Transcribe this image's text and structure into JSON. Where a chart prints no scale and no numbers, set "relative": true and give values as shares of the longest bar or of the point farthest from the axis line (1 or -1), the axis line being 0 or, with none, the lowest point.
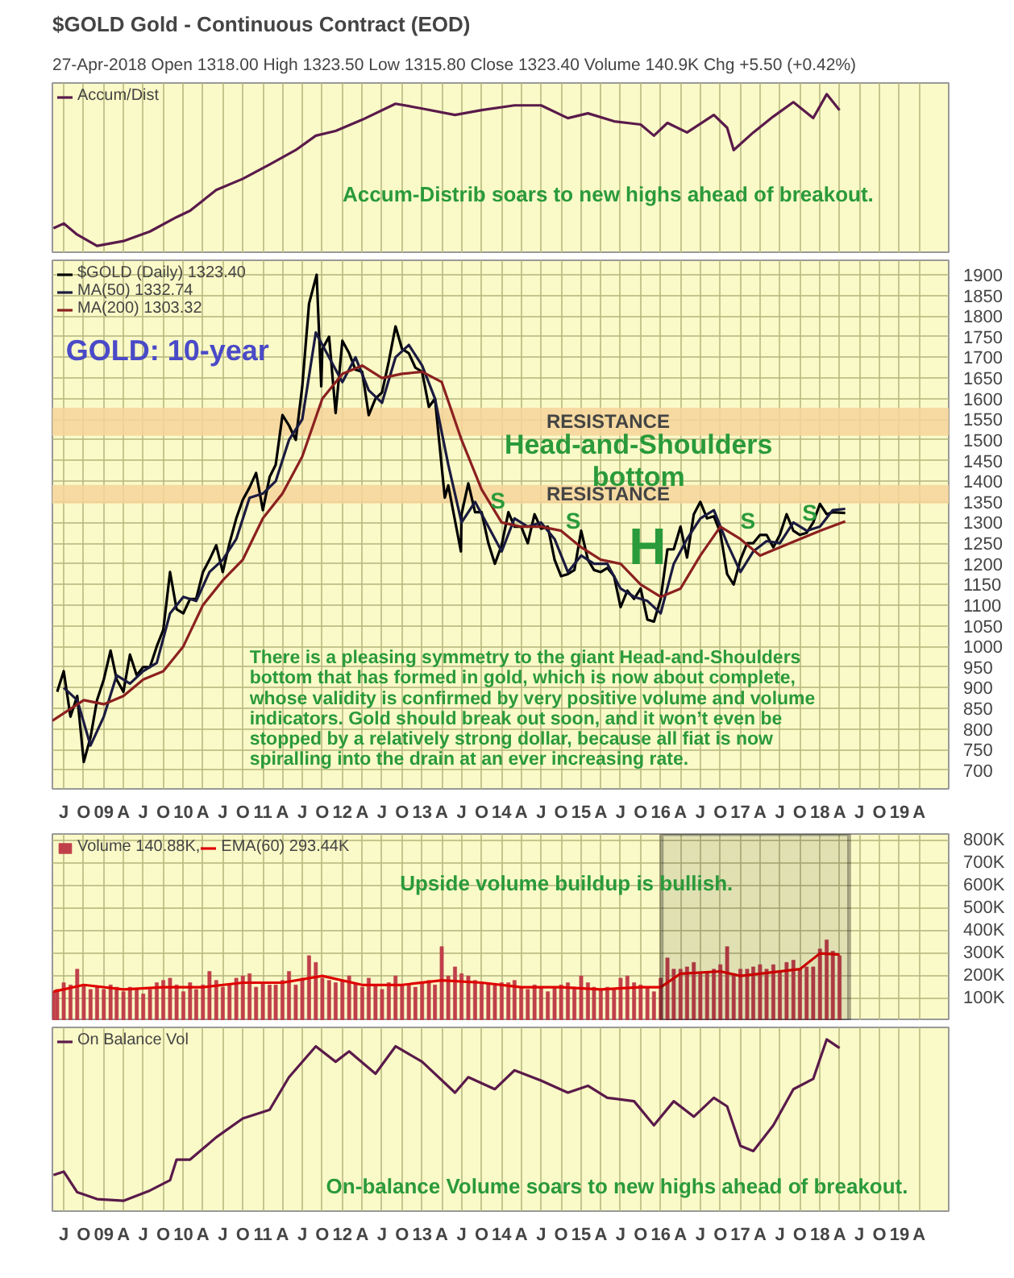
{
  "chart_data": [
    {
      "type": "line",
      "title": "$GOLD Gold - Continuous Contract (EOD)",
      "subtitle": "27-Apr-2018  Open 1318.00  High 1323.50  Low 1315.80  Close 1323.40  Volume 140.9K  Chg +5.50 (+0.42%)",
      "relative": true,
      "legend": "top left",
      "grid": "x",
      "tick_labels": false,
      "xlim": [
        "2008-05-10",
        "2019-08-15"
      ],
      "xticks": [
        {
          "value": "2008-07",
          "label": "J"
        },
        {
          "value": "2008-10",
          "label": "O"
        },
        {
          "value": "2009-01",
          "label": "09"
        },
        {
          "value": "2009-04",
          "label": "A"
        },
        {
          "value": "2009-07",
          "label": "J"
        },
        {
          "value": "2009-10",
          "label": "O"
        },
        {
          "value": "2010-01",
          "label": "10"
        },
        {
          "value": "2010-04",
          "label": "A"
        },
        {
          "value": "2010-07",
          "label": "J"
        },
        {
          "value": "2010-10",
          "label": "O"
        },
        {
          "value": "2011-01",
          "label": "11"
        },
        {
          "value": "2011-04",
          "label": "A"
        },
        {
          "value": "2011-07",
          "label": "J"
        },
        {
          "value": "2011-10",
          "label": "O"
        },
        {
          "value": "2012-01",
          "label": "12"
        },
        {
          "value": "2012-04",
          "label": "A"
        },
        {
          "value": "2012-07",
          "label": "J"
        },
        {
          "value": "2012-10",
          "label": "O"
        },
        {
          "value": "2013-01",
          "label": "13"
        },
        {
          "value": "2013-04",
          "label": "A"
        },
        {
          "value": "2013-07",
          "label": "J"
        },
        {
          "value": "2013-10",
          "label": "O"
        },
        {
          "value": "2014-01",
          "label": "14"
        },
        {
          "value": "2014-04",
          "label": "A"
        },
        {
          "value": "2014-07",
          "label": "J"
        },
        {
          "value": "2014-10",
          "label": "O"
        },
        {
          "value": "2015-01",
          "label": "15"
        },
        {
          "value": "2015-04",
          "label": "A"
        },
        {
          "value": "2015-07",
          "label": "J"
        },
        {
          "value": "2015-10",
          "label": "O"
        },
        {
          "value": "2016-01",
          "label": "16"
        },
        {
          "value": "2016-04",
          "label": "A"
        },
        {
          "value": "2016-07",
          "label": "J"
        },
        {
          "value": "2016-10",
          "label": "O"
        },
        {
          "value": "2017-01",
          "label": "17"
        },
        {
          "value": "2017-04",
          "label": "A"
        },
        {
          "value": "2017-07",
          "label": "J"
        },
        {
          "value": "2017-10",
          "label": "O"
        },
        {
          "value": "2018-01",
          "label": "18"
        },
        {
          "value": "2018-04",
          "label": "A"
        },
        {
          "value": "2018-07",
          "label": "J"
        },
        {
          "value": "2018-10",
          "label": "O"
        },
        {
          "value": "2019-01",
          "label": "19"
        },
        {
          "value": "2019-04",
          "label": "A"
        }
      ],
      "series": [
        {
          "name": "Accum/Dist",
          "color": "#5a1a4a",
          "x": [
            "2008-05-15",
            "2008-07",
            "2008-09",
            "2008-12",
            "2009-04",
            "2009-08",
            "2009-12",
            "2010-02",
            "2010-06",
            "2010-10",
            "2011-02",
            "2011-06",
            "2011-09",
            "2011-12",
            "2012-04",
            "2012-09",
            "2013-01",
            "2013-06",
            "2013-10",
            "2014-03",
            "2014-07",
            "2014-11",
            "2015-02",
            "2015-06",
            "2015-10",
            "2015-12",
            "2016-02",
            "2016-05",
            "2016-09",
            "2016-11",
            "2016-12",
            "2017-03",
            "2017-06",
            "2017-09",
            "2017-12",
            "2018-02",
            "2018-04"
          ],
          "values": [
            0.16,
            0.19,
            0.12,
            0.05,
            0.08,
            0.14,
            0.23,
            0.27,
            0.4,
            0.47,
            0.56,
            0.65,
            0.74,
            0.77,
            0.84,
            0.94,
            0.91,
            0.87,
            0.9,
            0.93,
            0.93,
            0.85,
            0.88,
            0.83,
            0.81,
            0.74,
            0.82,
            0.76,
            0.87,
            0.79,
            0.65,
            0.76,
            0.86,
            0.95,
            0.85,
            1,
            0.9
          ]
        }
      ],
      "annotations": [
        "Accum-Distrib soars to new highs ahead of breakout."
      ]
    },
    {
      "type": "line",
      "legend": "top left",
      "grid": true,
      "xlim": [
        "2008-05-10",
        "2019-08-15"
      ],
      "ylim": [
        655,
        1935
      ],
      "yticks": [
        700,
        750,
        800,
        850,
        900,
        950,
        1000,
        1050,
        1100,
        1150,
        1200,
        1250,
        1300,
        1350,
        1400,
        1450,
        1500,
        1550,
        1600,
        1650,
        1700,
        1750,
        1800,
        1850,
        1900
      ],
      "xticks": [
        {
          "value": "2008-07",
          "label": "J"
        },
        {
          "value": "2008-10",
          "label": "O"
        },
        {
          "value": "2009-01",
          "label": "09"
        },
        {
          "value": "2009-04",
          "label": "A"
        },
        {
          "value": "2009-07",
          "label": "J"
        },
        {
          "value": "2009-10",
          "label": "O"
        },
        {
          "value": "2010-01",
          "label": "10"
        },
        {
          "value": "2010-04",
          "label": "A"
        },
        {
          "value": "2010-07",
          "label": "J"
        },
        {
          "value": "2010-10",
          "label": "O"
        },
        {
          "value": "2011-01",
          "label": "11"
        },
        {
          "value": "2011-04",
          "label": "A"
        },
        {
          "value": "2011-07",
          "label": "J"
        },
        {
          "value": "2011-10",
          "label": "O"
        },
        {
          "value": "2012-01",
          "label": "12"
        },
        {
          "value": "2012-04",
          "label": "A"
        },
        {
          "value": "2012-07",
          "label": "J"
        },
        {
          "value": "2012-10",
          "label": "O"
        },
        {
          "value": "2013-01",
          "label": "13"
        },
        {
          "value": "2013-04",
          "label": "A"
        },
        {
          "value": "2013-07",
          "label": "J"
        },
        {
          "value": "2013-10",
          "label": "O"
        },
        {
          "value": "2014-01",
          "label": "14"
        },
        {
          "value": "2014-04",
          "label": "A"
        },
        {
          "value": "2014-07",
          "label": "J"
        },
        {
          "value": "2014-10",
          "label": "O"
        },
        {
          "value": "2015-01",
          "label": "15"
        },
        {
          "value": "2015-04",
          "label": "A"
        },
        {
          "value": "2015-07",
          "label": "J"
        },
        {
          "value": "2015-10",
          "label": "O"
        },
        {
          "value": "2016-01",
          "label": "16"
        },
        {
          "value": "2016-04",
          "label": "A"
        },
        {
          "value": "2016-07",
          "label": "J"
        },
        {
          "value": "2016-10",
          "label": "O"
        },
        {
          "value": "2017-01",
          "label": "17"
        },
        {
          "value": "2017-04",
          "label": "A"
        },
        {
          "value": "2017-07",
          "label": "J"
        },
        {
          "value": "2017-10",
          "label": "O"
        },
        {
          "value": "2018-01",
          "label": "18"
        },
        {
          "value": "2018-04",
          "label": "A"
        },
        {
          "value": "2018-07",
          "label": "J"
        },
        {
          "value": "2018-10",
          "label": "O"
        },
        {
          "value": "2019-01",
          "label": "19"
        },
        {
          "value": "2019-04",
          "label": "A"
        }
      ],
      "series": [
        {
          "name": "$GOLD (Daily) 1323.40",
          "color": "#000000",
          "x": [
            "2008-06",
            "2008-07",
            "2008-08",
            "2008-09",
            "2008-10",
            "2008-11",
            "2008-12",
            "2009-01",
            "2009-02",
            "2009-03",
            "2009-04",
            "2009-05",
            "2009-06",
            "2009-07",
            "2009-08",
            "2009-09",
            "2009-10",
            "2009-11",
            "2009-12",
            "2010-01",
            "2010-02",
            "2010-03",
            "2010-04",
            "2010-05",
            "2010-06",
            "2010-07",
            "2010-08",
            "2010-09",
            "2010-10",
            "2010-11",
            "2010-12",
            "2011-01",
            "2011-02",
            "2011-03",
            "2011-04",
            "2011-05",
            "2011-06",
            "2011-07",
            "2011-08",
            "2011-09-05",
            "2011-09-26",
            "2011-10",
            "2011-11",
            "2011-12",
            "2012-01",
            "2012-02",
            "2012-03",
            "2012-04",
            "2012-05",
            "2012-06",
            "2012-07",
            "2012-08",
            "2012-09",
            "2012-10",
            "2012-11",
            "2012-12",
            "2013-01",
            "2013-02",
            "2013-03",
            "2013-04-15",
            "2013-05",
            "2013-06-28",
            "2013-07",
            "2013-08",
            "2013-09",
            "2013-10",
            "2013-11",
            "2013-12",
            "2014-01",
            "2014-02",
            "2014-03",
            "2014-04",
            "2014-05",
            "2014-06",
            "2014-07",
            "2014-08",
            "2014-09",
            "2014-10",
            "2014-11",
            "2014-12",
            "2015-01",
            "2015-02",
            "2015-03",
            "2015-04",
            "2015-05",
            "2015-06",
            "2015-07",
            "2015-08",
            "2015-09",
            "2015-10",
            "2015-11",
            "2015-12",
            "2016-01",
            "2016-02",
            "2016-03",
            "2016-04",
            "2016-05",
            "2016-06",
            "2016-07",
            "2016-08",
            "2016-09",
            "2016-10",
            "2016-11",
            "2016-12",
            "2017-01",
            "2017-02",
            "2017-03",
            "2017-04",
            "2017-05",
            "2017-06",
            "2017-07",
            "2017-08",
            "2017-09",
            "2017-10",
            "2017-11",
            "2017-12",
            "2018-01",
            "2018-02",
            "2018-03",
            "2018-04-27"
          ],
          "values": [
            890,
            940,
            830,
            880,
            720,
            780,
            870,
            920,
            990,
            920,
            890,
            980,
            930,
            950,
            950,
            1000,
            1040,
            1180,
            1090,
            1080,
            1115,
            1115,
            1180,
            1210,
            1245,
            1180,
            1250,
            1310,
            1355,
            1385,
            1420,
            1330,
            1410,
            1440,
            1560,
            1535,
            1500,
            1630,
            1830,
            1900,
            1630,
            1720,
            1750,
            1565,
            1740,
            1710,
            1670,
            1665,
            1560,
            1600,
            1615,
            1690,
            1775,
            1720,
            1710,
            1675,
            1665,
            1580,
            1600,
            1360,
            1390,
            1230,
            1320,
            1395,
            1325,
            1325,
            1250,
            1200,
            1245,
            1325,
            1290,
            1290,
            1250,
            1320,
            1285,
            1290,
            1210,
            1170,
            1175,
            1185,
            1280,
            1210,
            1185,
            1180,
            1190,
            1170,
            1095,
            1135,
            1115,
            1140,
            1065,
            1060,
            1115,
            1235,
            1235,
            1290,
            1215,
            1320,
            1350,
            1310,
            1315,
            1275,
            1175,
            1150,
            1210,
            1250,
            1250,
            1270,
            1270,
            1240,
            1270,
            1320,
            1280,
            1270,
            1275,
            1300,
            1345,
            1320,
            1325,
            1323
          ]
        },
        {
          "name": "MA(50) 1332.74",
          "color": "#1a1a40",
          "x": [
            "2008-07",
            "2008-09",
            "2008-11",
            "2009-01",
            "2009-03",
            "2009-05",
            "2009-07",
            "2009-09",
            "2009-11",
            "2010-01",
            "2010-03",
            "2010-05",
            "2010-07",
            "2010-09",
            "2010-11",
            "2011-01",
            "2011-03",
            "2011-05",
            "2011-07",
            "2011-09",
            "2011-11",
            "2012-01",
            "2012-03",
            "2012-05",
            "2012-07",
            "2012-09",
            "2012-11",
            "2013-01",
            "2013-03",
            "2013-05",
            "2013-07",
            "2013-09",
            "2013-11",
            "2014-01",
            "2014-03",
            "2014-05",
            "2014-07",
            "2014-09",
            "2014-11",
            "2015-01",
            "2015-03",
            "2015-05",
            "2015-07",
            "2015-09",
            "2015-11",
            "2016-01",
            "2016-03",
            "2016-05",
            "2016-07",
            "2016-09",
            "2016-11",
            "2017-01",
            "2017-03",
            "2017-05",
            "2017-07",
            "2017-09",
            "2017-11",
            "2018-01",
            "2018-03",
            "2018-04-27"
          ],
          "values": [
            900,
            870,
            760,
            830,
            930,
            910,
            940,
            960,
            1080,
            1120,
            1110,
            1180,
            1210,
            1260,
            1360,
            1370,
            1400,
            1500,
            1550,
            1760,
            1700,
            1640,
            1700,
            1620,
            1590,
            1700,
            1730,
            1680,
            1600,
            1440,
            1300,
            1350,
            1290,
            1230,
            1310,
            1290,
            1300,
            1260,
            1180,
            1220,
            1200,
            1200,
            1140,
            1120,
            1110,
            1080,
            1200,
            1260,
            1310,
            1330,
            1250,
            1180,
            1230,
            1255,
            1250,
            1300,
            1280,
            1290,
            1330,
            1333
          ]
        },
        {
          "name": "MA(200) 1303.32",
          "color": "#8b2020",
          "x": [
            "2008-05-10",
            "2008-10",
            "2009-01",
            "2009-04",
            "2009-07",
            "2009-10",
            "2010-01",
            "2010-04",
            "2010-07",
            "2010-10",
            "2011-01",
            "2011-04",
            "2011-07",
            "2011-10",
            "2012-01",
            "2012-04",
            "2012-07",
            "2012-10",
            "2013-01",
            "2013-04",
            "2013-07",
            "2013-10",
            "2014-01",
            "2014-04",
            "2014-07",
            "2014-10",
            "2015-01",
            "2015-04",
            "2015-07",
            "2015-10",
            "2016-01",
            "2016-04",
            "2016-07",
            "2016-10",
            "2017-01",
            "2017-04",
            "2017-07",
            "2017-10",
            "2018-01",
            "2018-04-27"
          ],
          "values": [
            820,
            870,
            860,
            880,
            920,
            940,
            1000,
            1100,
            1160,
            1210,
            1310,
            1370,
            1460,
            1600,
            1660,
            1680,
            1650,
            1660,
            1665,
            1640,
            1500,
            1380,
            1300,
            1290,
            1290,
            1280,
            1240,
            1210,
            1200,
            1150,
            1120,
            1140,
            1220,
            1290,
            1260,
            1220,
            1240,
            1260,
            1280,
            1303
          ]
        }
      ],
      "bands": [
        {
          "axis": "y",
          "from": 1510,
          "to": 1578,
          "label": "RESISTANCE",
          "color": "#f5d49a"
        },
        {
          "axis": "y",
          "from": 1346,
          "to": 1391,
          "label": "RESISTANCE",
          "color": "#f5d49a"
        }
      ],
      "annotations": [
        "GOLD: 10-year",
        "Head-and-Shoulders bottom",
        "S",
        "S",
        "H",
        "S",
        "S",
        "There is a pleasing symmetry to the giant Head-and-Shoulders bottom that has formed in gold, which is now about complete, whose validity is confirmed by very positive volume and volume indicators. Gold should break out soon, and it won’t even be stopped by a relatively strong dollar, because all fiat is now spiralling into the drain at an ever increasing rate."
      ]
    },
    {
      "type": "bar",
      "legend": "top left",
      "grid": true,
      "tick_labels": "y",
      "xlim": [
        "2008-05-10",
        "2019-08-15"
      ],
      "ylim": [
        0,
        830000
      ],
      "yticks": [
        {
          "value": 100000,
          "label": "100K"
        },
        {
          "value": 200000,
          "label": "200K"
        },
        {
          "value": 300000,
          "label": "300K"
        },
        {
          "value": 400000,
          "label": "400K"
        },
        {
          "value": 500000,
          "label": "500K"
        },
        {
          "value": 600000,
          "label": "600K"
        },
        {
          "value": 700000,
          "label": "700K"
        },
        {
          "value": 800000,
          "label": "800K"
        }
      ],
      "xticks": [
        {
          "value": "2008-07",
          "label": "J"
        },
        {
          "value": "2008-10",
          "label": "O"
        },
        {
          "value": "2009-01",
          "label": "09"
        },
        {
          "value": "2009-04",
          "label": "A"
        },
        {
          "value": "2009-07",
          "label": "J"
        },
        {
          "value": "2009-10",
          "label": "O"
        },
        {
          "value": "2010-01",
          "label": "10"
        },
        {
          "value": "2010-04",
          "label": "A"
        },
        {
          "value": "2010-07",
          "label": "J"
        },
        {
          "value": "2010-10",
          "label": "O"
        },
        {
          "value": "2011-01",
          "label": "11"
        },
        {
          "value": "2011-04",
          "label": "A"
        },
        {
          "value": "2011-07",
          "label": "J"
        },
        {
          "value": "2011-10",
          "label": "O"
        },
        {
          "value": "2012-01",
          "label": "12"
        },
        {
          "value": "2012-04",
          "label": "A"
        },
        {
          "value": "2012-07",
          "label": "J"
        },
        {
          "value": "2012-10",
          "label": "O"
        },
        {
          "value": "2013-01",
          "label": "13"
        },
        {
          "value": "2013-04",
          "label": "A"
        },
        {
          "value": "2013-07",
          "label": "J"
        },
        {
          "value": "2013-10",
          "label": "O"
        },
        {
          "value": "2014-01",
          "label": "14"
        },
        {
          "value": "2014-04",
          "label": "A"
        },
        {
          "value": "2014-07",
          "label": "J"
        },
        {
          "value": "2014-10",
          "label": "O"
        },
        {
          "value": "2015-01",
          "label": "15"
        },
        {
          "value": "2015-04",
          "label": "A"
        },
        {
          "value": "2015-07",
          "label": "J"
        },
        {
          "value": "2015-10",
          "label": "O"
        },
        {
          "value": "2016-01",
          "label": "16"
        },
        {
          "value": "2016-04",
          "label": "A"
        },
        {
          "value": "2016-07",
          "label": "J"
        },
        {
          "value": "2016-10",
          "label": "O"
        },
        {
          "value": "2017-01",
          "label": "17"
        },
        {
          "value": "2017-04",
          "label": "A"
        },
        {
          "value": "2017-07",
          "label": "J"
        },
        {
          "value": "2017-10",
          "label": "O"
        },
        {
          "value": "2018-01",
          "label": "18"
        },
        {
          "value": "2018-04",
          "label": "A"
        },
        {
          "value": "2018-07",
          "label": "J"
        },
        {
          "value": "2018-10",
          "label": "O"
        },
        {
          "value": "2019-01",
          "label": "19"
        },
        {
          "value": "2019-04",
          "label": "A"
        }
      ],
      "series": [
        {
          "name": "Volume 140.88K,",
          "color": "#c0404a",
          "x": [
            "2008-05-15",
            "2008-06",
            "2008-07",
            "2008-08",
            "2008-09",
            "2008-10",
            "2008-11",
            "2008-12",
            "2009-01",
            "2009-02",
            "2009-03",
            "2009-04",
            "2009-05",
            "2009-06",
            "2009-07",
            "2009-08",
            "2009-09",
            "2009-10",
            "2009-11",
            "2009-12",
            "2010-01",
            "2010-02",
            "2010-03",
            "2010-04",
            "2010-05",
            "2010-06",
            "2010-07",
            "2010-08",
            "2010-09",
            "2010-10",
            "2010-11",
            "2010-12",
            "2011-01",
            "2011-02",
            "2011-03",
            "2011-04",
            "2011-05",
            "2011-06",
            "2011-07",
            "2011-08",
            "2011-09",
            "2011-10",
            "2011-11",
            "2011-12",
            "2012-01",
            "2012-02",
            "2012-03",
            "2012-04",
            "2012-05",
            "2012-06",
            "2012-07",
            "2012-08",
            "2012-09",
            "2012-10",
            "2012-11",
            "2012-12",
            "2013-01",
            "2013-02",
            "2013-03",
            "2013-04",
            "2013-05",
            "2013-06",
            "2013-07",
            "2013-08",
            "2013-09",
            "2013-10",
            "2013-11",
            "2013-12",
            "2014-01",
            "2014-02",
            "2014-03",
            "2014-04",
            "2014-05",
            "2014-06",
            "2014-07",
            "2014-08",
            "2014-09",
            "2014-10",
            "2014-11",
            "2014-12",
            "2015-01",
            "2015-02",
            "2015-03",
            "2015-04",
            "2015-05",
            "2015-06",
            "2015-07",
            "2015-08",
            "2015-09",
            "2015-10",
            "2015-11",
            "2015-12",
            "2016-01",
            "2016-02",
            "2016-03",
            "2016-04",
            "2016-05",
            "2016-06",
            "2016-07",
            "2016-08",
            "2016-09",
            "2016-10",
            "2016-11",
            "2016-12",
            "2017-01",
            "2017-02",
            "2017-03",
            "2017-04",
            "2017-05",
            "2017-06",
            "2017-07",
            "2017-08",
            "2017-09",
            "2017-10",
            "2017-11",
            "2017-12",
            "2018-01",
            "2018-02",
            "2018-03",
            "2018-04"
          ],
          "values": [
            130000,
            140000,
            170000,
            160000,
            230000,
            160000,
            140000,
            150000,
            140000,
            160000,
            150000,
            130000,
            150000,
            140000,
            120000,
            140000,
            170000,
            180000,
            190000,
            160000,
            130000,
            170000,
            140000,
            160000,
            220000,
            180000,
            150000,
            160000,
            190000,
            200000,
            210000,
            150000,
            170000,
            160000,
            160000,
            180000,
            220000,
            160000,
            190000,
            290000,
            260000,
            190000,
            180000,
            170000,
            180000,
            200000,
            170000,
            150000,
            190000,
            160000,
            140000,
            170000,
            200000,
            160000,
            160000,
            150000,
            170000,
            180000,
            160000,
            330000,
            200000,
            240000,
            210000,
            200000,
            180000,
            170000,
            170000,
            160000,
            170000,
            170000,
            180000,
            150000,
            140000,
            160000,
            150000,
            130000,
            150000,
            160000,
            170000,
            150000,
            200000,
            170000,
            150000,
            140000,
            150000,
            140000,
            190000,
            200000,
            170000,
            160000,
            150000,
            130000,
            190000,
            280000,
            230000,
            230000,
            240000,
            260000,
            210000,
            220000,
            230000,
            250000,
            330000,
            210000,
            230000,
            230000,
            240000,
            250000,
            230000,
            250000,
            220000,
            260000,
            270000,
            230000,
            240000,
            240000,
            320000,
            360000,
            310000,
            290000
          ]
        },
        {
          "name": "EMA(60) 293.44K",
          "type": "line",
          "color": "#e00000",
          "x": [
            "2008-05-15",
            "2008-10",
            "2009-04",
            "2009-10",
            "2010-04",
            "2010-10",
            "2011-04",
            "2011-10",
            "2012-04",
            "2012-10",
            "2013-04",
            "2013-10",
            "2014-04",
            "2014-10",
            "2015-04",
            "2015-10",
            "2016-01",
            "2016-04",
            "2016-10",
            "2017-01",
            "2017-04",
            "2017-10",
            "2018-01",
            "2018-04"
          ],
          "values": [
            130000,
            160000,
            140000,
            150000,
            150000,
            170000,
            170000,
            200000,
            160000,
            160000,
            180000,
            170000,
            150000,
            150000,
            140000,
            150000,
            150000,
            210000,
            220000,
            200000,
            210000,
            230000,
            300000,
            295000
          ]
        }
      ],
      "bands": [
        {
          "axis": "x",
          "from": "2016-01-05",
          "to": "2018-05-15",
          "color": "#000000"
        }
      ],
      "annotations": [
        "Upside volume buildup  is  bullish."
      ]
    },
    {
      "type": "line",
      "relative": true,
      "legend": "top left",
      "grid": "x",
      "xlim": [
        "2008-05-10",
        "2019-08-15"
      ],
      "xticks": [
        {
          "value": "2008-07",
          "label": "J"
        },
        {
          "value": "2008-10",
          "label": "O"
        },
        {
          "value": "2009-01",
          "label": "09"
        },
        {
          "value": "2009-04",
          "label": "A"
        },
        {
          "value": "2009-07",
          "label": "J"
        },
        {
          "value": "2009-10",
          "label": "O"
        },
        {
          "value": "2010-01",
          "label": "10"
        },
        {
          "value": "2010-04",
          "label": "A"
        },
        {
          "value": "2010-07",
          "label": "J"
        },
        {
          "value": "2010-10",
          "label": "O"
        },
        {
          "value": "2011-01",
          "label": "11"
        },
        {
          "value": "2011-04",
          "label": "A"
        },
        {
          "value": "2011-07",
          "label": "J"
        },
        {
          "value": "2011-10",
          "label": "O"
        },
        {
          "value": "2012-01",
          "label": "12"
        },
        {
          "value": "2012-04",
          "label": "A"
        },
        {
          "value": "2012-07",
          "label": "J"
        },
        {
          "value": "2012-10",
          "label": "O"
        },
        {
          "value": "2013-01",
          "label": "13"
        },
        {
          "value": "2013-04",
          "label": "A"
        },
        {
          "value": "2013-07",
          "label": "J"
        },
        {
          "value": "2013-10",
          "label": "O"
        },
        {
          "value": "2014-01",
          "label": "14"
        },
        {
          "value": "2014-04",
          "label": "A"
        },
        {
          "value": "2014-07",
          "label": "J"
        },
        {
          "value": "2014-10",
          "label": "O"
        },
        {
          "value": "2015-01",
          "label": "15"
        },
        {
          "value": "2015-04",
          "label": "A"
        },
        {
          "value": "2015-07",
          "label": "J"
        },
        {
          "value": "2015-10",
          "label": "O"
        },
        {
          "value": "2016-01",
          "label": "16"
        },
        {
          "value": "2016-04",
          "label": "A"
        },
        {
          "value": "2016-07",
          "label": "J"
        },
        {
          "value": "2016-10",
          "label": "O"
        },
        {
          "value": "2017-01",
          "label": "17"
        },
        {
          "value": "2017-04",
          "label": "A"
        },
        {
          "value": "2017-07",
          "label": "J"
        },
        {
          "value": "2017-10",
          "label": "O"
        },
        {
          "value": "2018-01",
          "label": "18"
        },
        {
          "value": "2018-04",
          "label": "A"
        },
        {
          "value": "2018-07",
          "label": "J"
        },
        {
          "value": "2018-10",
          "label": "O"
        },
        {
          "value": "2019-01",
          "label": "19"
        },
        {
          "value": "2019-04",
          "label": "A"
        }
      ],
      "series": [
        {
          "name": "On Balance Vol",
          "color": "#5a1a4a",
          "x": [
            "2008-05-15",
            "2008-07",
            "2008-09",
            "2008-12",
            "2009-04",
            "2009-08",
            "2009-11",
            "2009-12",
            "2010-02",
            "2010-06",
            "2010-10",
            "2011-02",
            "2011-05",
            "2011-09",
            "2011-12",
            "2012-02",
            "2012-06",
            "2012-09",
            "2013-01",
            "2013-06",
            "2013-08",
            "2013-12",
            "2014-03",
            "2014-07",
            "2014-11",
            "2015-02",
            "2015-05",
            "2015-09",
            "2015-12",
            "2016-03",
            "2016-06",
            "2016-09",
            "2016-11",
            "2017-01",
            "2017-03",
            "2017-06",
            "2017-09",
            "2017-12",
            "2018-02",
            "2018-04"
          ],
          "values": [
            0.21,
            0.23,
            0.11,
            0.07,
            0.06,
            0.12,
            0.18,
            0.3,
            0.3,
            0.43,
            0.54,
            0.59,
            0.78,
            0.96,
            0.87,
            0.93,
            0.8,
            0.96,
            0.87,
            0.69,
            0.78,
            0.71,
            0.82,
            0.76,
            0.69,
            0.73,
            0.66,
            0.64,
            0.5,
            0.64,
            0.55,
            0.66,
            0.61,
            0.38,
            0.35,
            0.5,
            0.71,
            0.77,
            1,
            0.95
          ]
        }
      ],
      "annotations": [
        "On-balance Volume soars to new highs ahead of breakout."
      ]
    }
  ]
}
